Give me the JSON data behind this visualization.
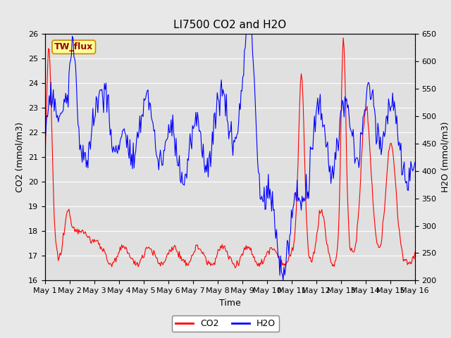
{
  "title": "LI7500 CO2 and H2O",
  "xlabel": "Time",
  "ylabel_left": "CO2 (mmol/m3)",
  "ylabel_right": "H2O (mmol/m3)",
  "co2_ylim": [
    16.0,
    26.0
  ],
  "h2o_ylim": [
    200,
    650
  ],
  "co2_yticks": [
    16.0,
    17.0,
    18.0,
    19.0,
    20.0,
    21.0,
    22.0,
    23.0,
    24.0,
    25.0,
    26.0
  ],
  "h2o_yticks": [
    200,
    250,
    300,
    350,
    400,
    450,
    500,
    550,
    600,
    650
  ],
  "xtick_labels": [
    "May 1",
    "May 2",
    "May 3",
    "May 4",
    "May 5",
    "May 6",
    "May 7",
    "May 8",
    "May 9",
    "May 10",
    "May 11",
    "May 12",
    "May 13",
    "May 14",
    "May 15",
    "May 16"
  ],
  "co2_color": "#FF0000",
  "h2o_color": "#0000FF",
  "fig_facecolor": "#E8E8E8",
  "plot_facecolor": "#E0E0E0",
  "annotation_text": "TW_flux",
  "annotation_bg": "#FFFF99",
  "annotation_border": "#CC8800",
  "legend_co2": "CO2",
  "legend_h2o": "H2O",
  "title_fontsize": 11,
  "axis_label_fontsize": 9,
  "tick_fontsize": 8,
  "legend_fontsize": 9
}
